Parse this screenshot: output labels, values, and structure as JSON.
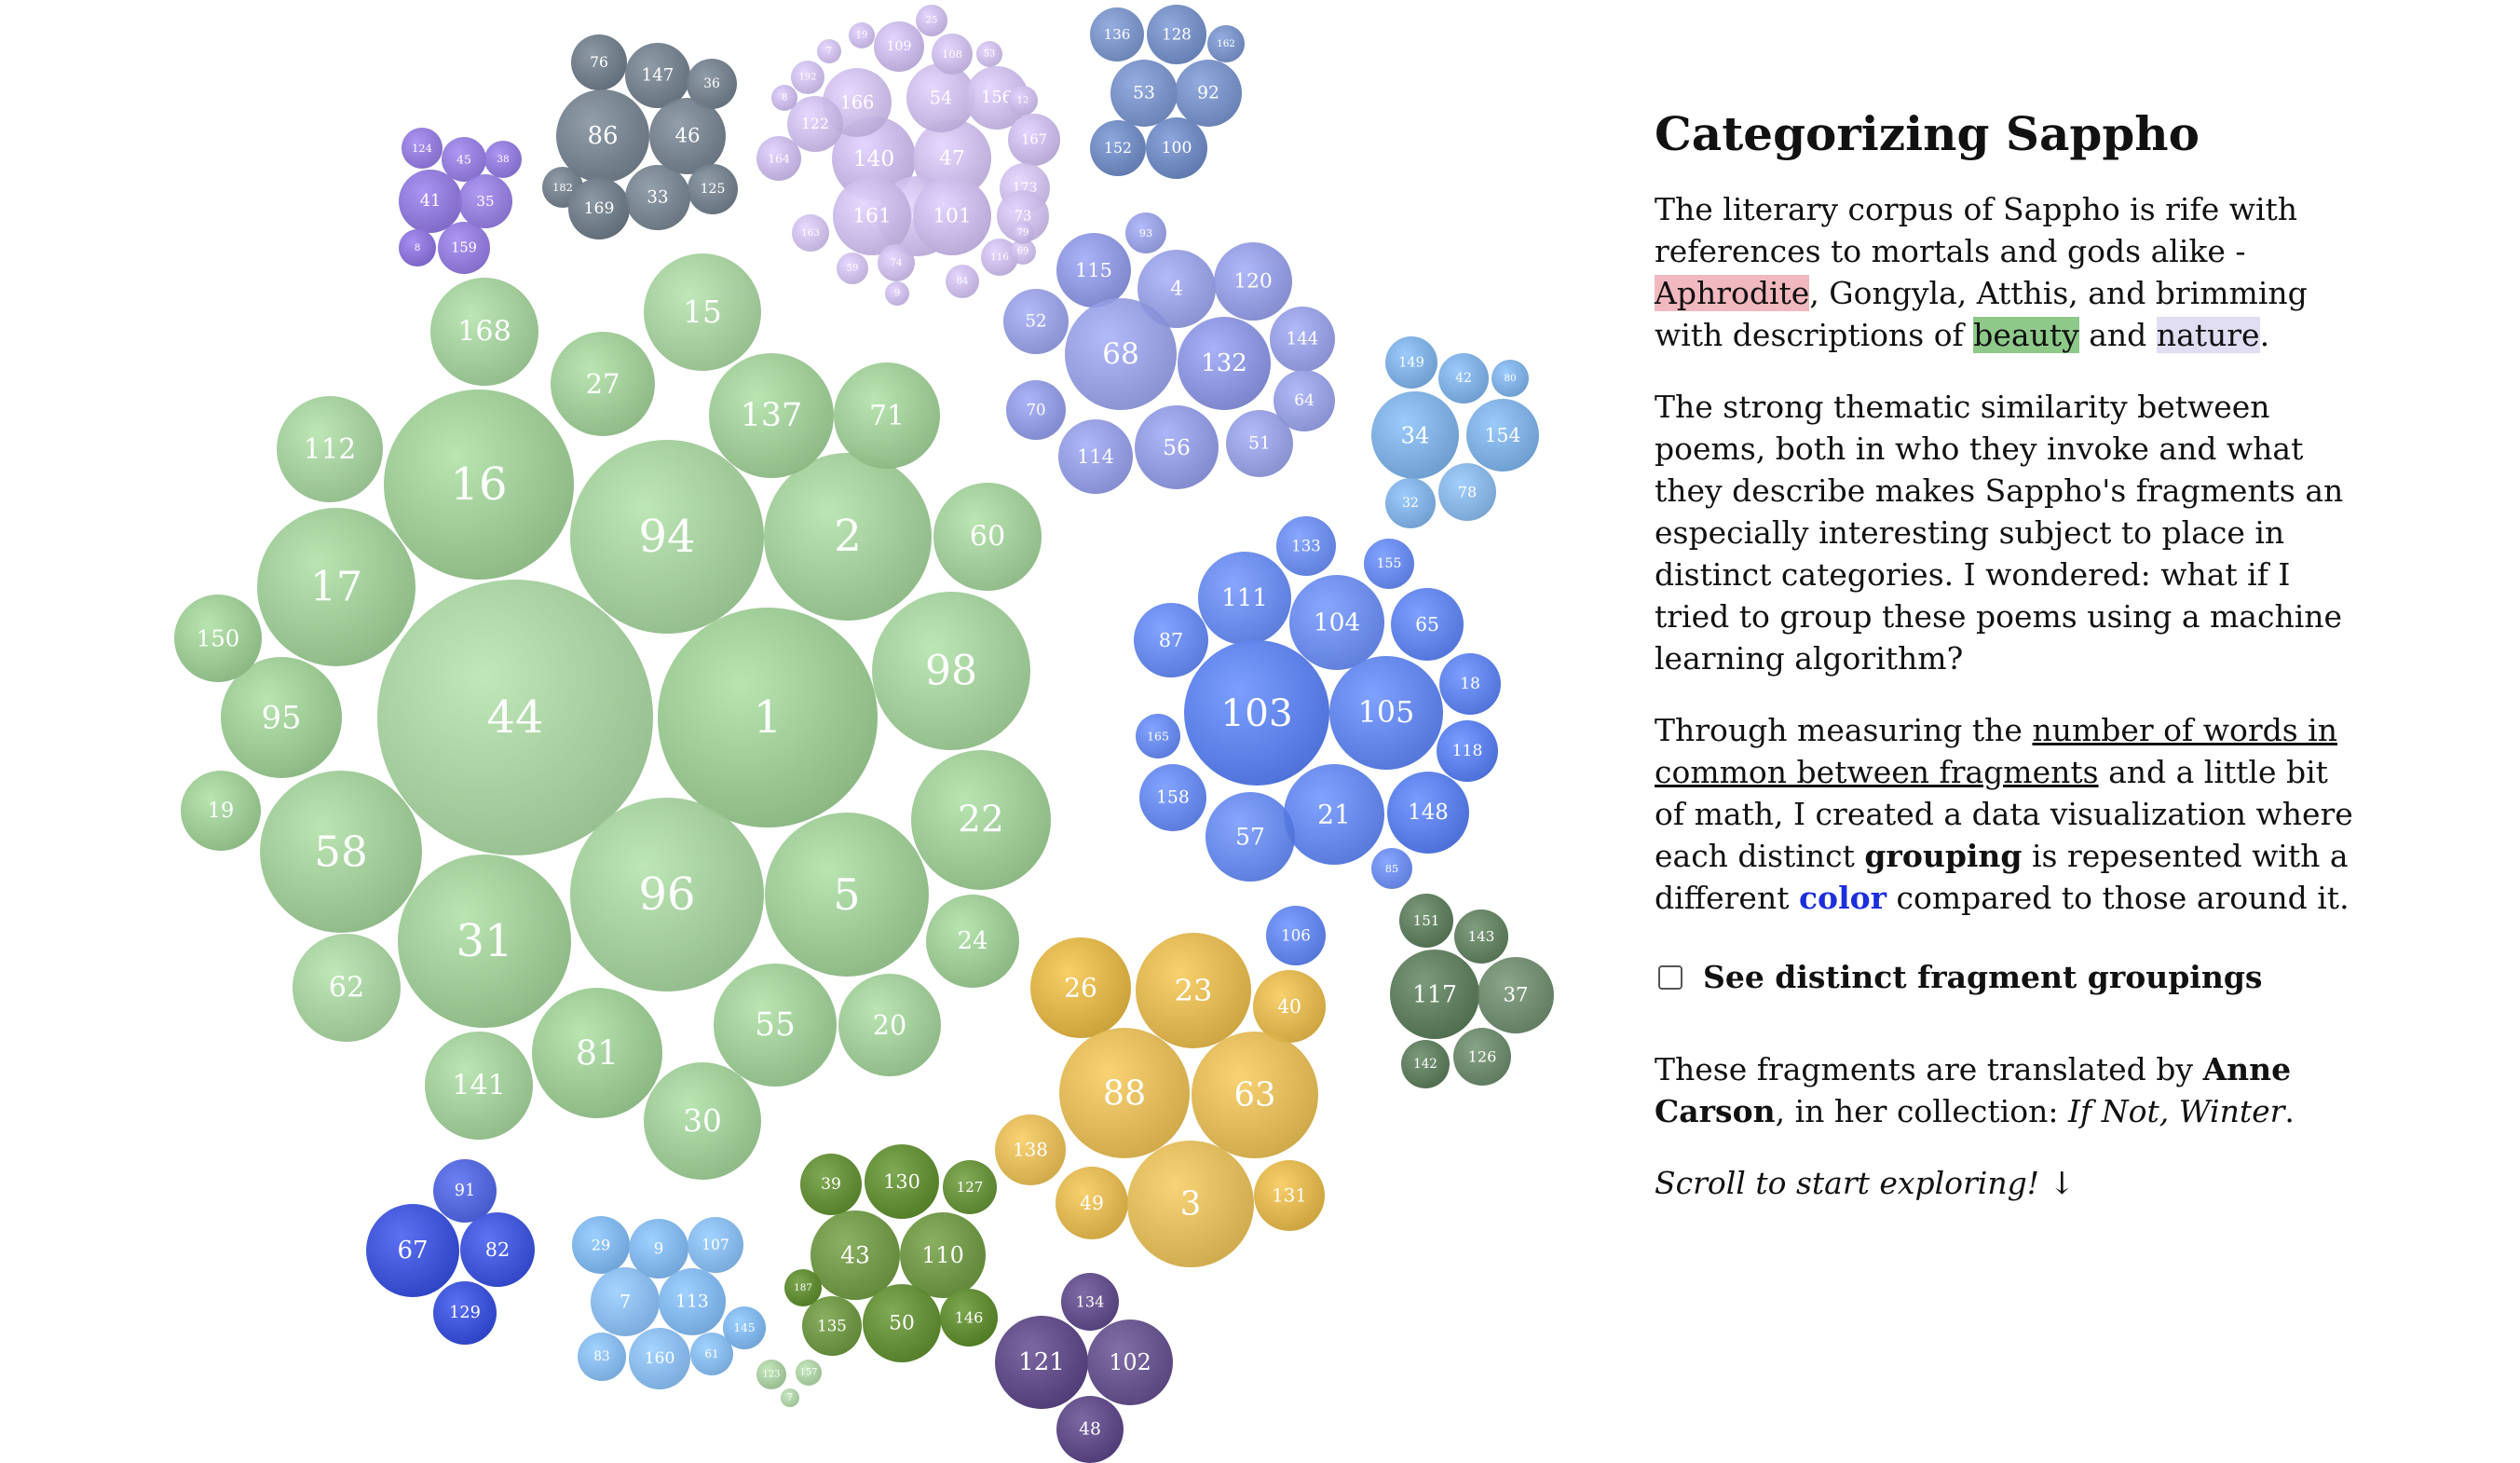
{
  "panel": {
    "title": "Categorizing Sappho",
    "p1": {
      "pre": "The literary corpus of Sappho is rife with references to mortals and gods alike - ",
      "h1": "Aphrodite",
      "mid": ", Gongyla, Atthis, and brimming with descriptions of ",
      "h2": "beauty",
      "and": " and ",
      "h3": "nature",
      "end": "."
    },
    "p2": "The strong thematic similarity between poems, both in who they invoke and what they describe makes Sappho's fragments an especially interesting subject to place in distinct categories. I wondered: what if I tried to group these poems using a machine learning algorithm?",
    "p3": {
      "pre": "Through measuring the ",
      "link": "number of words in common between fragments",
      "mid1": " and a little bit of math, I created a data visualization where each distinct ",
      "bold": "grouping",
      "mid2": " is repesented with a different ",
      "color_word": "color",
      "end": " compared to those around it."
    },
    "toggle_label": "See distinct fragment groupings",
    "toggle_checked": false,
    "credit": {
      "pre": "These fragments are translated by ",
      "author": "Anne Carson",
      "mid": ", in her collection: ",
      "book": "If Not, Winter",
      "end": "."
    },
    "scroll_hint": "Scroll to start exploring! ↓"
  },
  "colors": {
    "green_main": "#9bc893",
    "lavender": "#c8b8e6",
    "purple": "#8a73d6",
    "slate": "#6f7c88",
    "steel_blue": "#6f89c0",
    "periwinkle": "#8d96dd",
    "sky": "#7eaee0",
    "royal_blue": "#5b7fe8",
    "dark_green": "#5e7d5e",
    "gold": "#dcb24a",
    "olive": "#5f8a32",
    "deep_blue": "#3e54d6",
    "light_blue": "#7fb4e8",
    "pale_green": "#a8cca0",
    "plum": "#5c4784"
  },
  "clusters": [
    {
      "name": "large-green",
      "color": "#9bc893",
      "fragments": [
        "44",
        "1",
        "94",
        "96",
        "16",
        "2",
        "98",
        "22",
        "5",
        "58",
        "31",
        "17",
        "95",
        "112",
        "168",
        "27",
        "137",
        "15",
        "71",
        "60",
        "150",
        "19",
        "62",
        "141",
        "81",
        "30",
        "55",
        "20",
        "24"
      ]
    },
    {
      "name": "lavender",
      "color": "#c8b8e6",
      "fragments": [
        "140",
        "47",
        "6",
        "101",
        "161",
        "166",
        "54",
        "156",
        "122",
        "109",
        "108",
        "25",
        "167",
        "173",
        "73",
        "116",
        "84",
        "74",
        "59",
        "164",
        "163",
        "192",
        "53",
        "12",
        "8",
        "19",
        "7",
        "9",
        "69",
        "79"
      ]
    },
    {
      "name": "purple",
      "color": "#8a73d6",
      "fragments": [
        "124",
        "45",
        "38",
        "41",
        "35",
        "8",
        "159"
      ]
    },
    {
      "name": "slate",
      "color": "#6f7c88",
      "fragments": [
        "76",
        "147",
        "36",
        "86",
        "46",
        "182",
        "169",
        "33",
        "125"
      ]
    },
    {
      "name": "steel-blue",
      "color": "#6f89c0",
      "fragments": [
        "136",
        "128",
        "162",
        "53",
        "92",
        "152",
        "100"
      ]
    },
    {
      "name": "periwinkle",
      "color": "#8d96dd",
      "fragments": [
        "93",
        "115",
        "4",
        "120",
        "52",
        "68",
        "132",
        "144",
        "70",
        "64",
        "114",
        "56",
        "51"
      ]
    },
    {
      "name": "sky",
      "color": "#7eaee0",
      "fragments": [
        "149",
        "42",
        "80",
        "34",
        "154",
        "32",
        "78"
      ]
    },
    {
      "name": "royal-blue",
      "color": "#5b7fe8",
      "fragments": [
        "133",
        "155",
        "111",
        "104",
        "65",
        "87",
        "103",
        "105",
        "18",
        "165",
        "118",
        "158",
        "21",
        "148",
        "57",
        "106",
        "85"
      ]
    },
    {
      "name": "dark-green",
      "color": "#5e7d5e",
      "fragments": [
        "151",
        "143",
        "117",
        "37",
        "142",
        "126"
      ]
    },
    {
      "name": "gold",
      "color": "#dcb24a",
      "fragments": [
        "26",
        "23",
        "40",
        "88",
        "63",
        "138",
        "49",
        "3",
        "131"
      ]
    },
    {
      "name": "olive",
      "color": "#5f8a32",
      "fragments": [
        "39",
        "130",
        "127",
        "43",
        "110",
        "187",
        "135",
        "50",
        "146"
      ]
    },
    {
      "name": "deep-blue",
      "color": "#3e54d6",
      "fragments": [
        "91",
        "67",
        "82",
        "129"
      ]
    },
    {
      "name": "light-blue",
      "color": "#7fb4e8",
      "fragments": [
        "29",
        "9",
        "107",
        "7",
        "113",
        "145",
        "83",
        "160",
        "61"
      ]
    },
    {
      "name": "pale-green",
      "color": "#a8cca0",
      "fragments": [
        "123",
        "157",
        "7"
      ]
    },
    {
      "name": "plum",
      "color": "#5c4784",
      "fragments": [
        "134",
        "121",
        "102",
        "48"
      ]
    }
  ]
}
